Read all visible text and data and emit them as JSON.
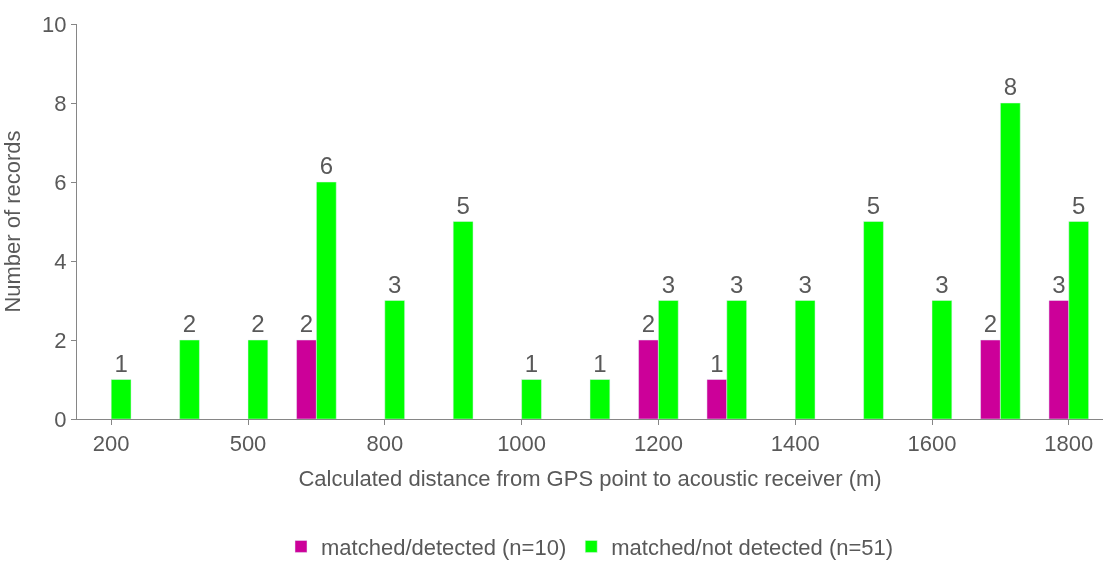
{
  "chart_data": {
    "type": "bar",
    "xlabel": "Calculated distance from GPS point to acoustic receiver (m)",
    "ylabel": "Number of records",
    "categories": [
      "200",
      null,
      "500",
      null,
      "800",
      null,
      "1000",
      null,
      "1200",
      null,
      "1400",
      null,
      "1600",
      null,
      "1800"
    ],
    "series": [
      {
        "name": "matched/detected (n=10)",
        "color": "#cc0099",
        "values": [
          null,
          null,
          null,
          2,
          null,
          null,
          null,
          null,
          2,
          1,
          null,
          null,
          null,
          2,
          3
        ]
      },
      {
        "name": "matched/not detected (n=51)",
        "color": "#00ff00",
        "values": [
          1,
          2,
          2,
          6,
          3,
          5,
          1,
          1,
          3,
          3,
          3,
          5,
          3,
          8,
          5
        ]
      }
    ],
    "ylim": [
      0,
      10
    ],
    "yticks": [
      0,
      2,
      4,
      6,
      8,
      10
    ],
    "legend": "bottom",
    "data_labels": true
  }
}
